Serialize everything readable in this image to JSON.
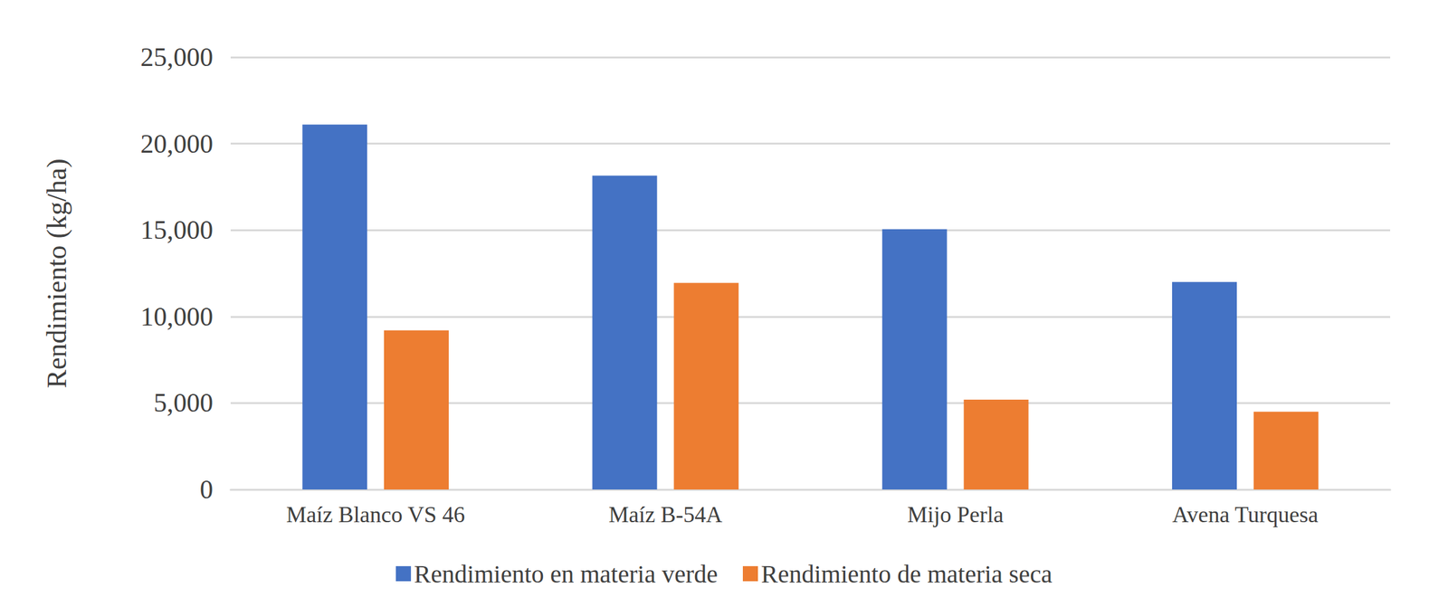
{
  "chart_data": {
    "type": "bar",
    "y_label": "Rendimiento (kg/ha)",
    "categories": [
      "Maíz Blanco VS 46",
      "Maíz B-54A",
      "Mijo Perla",
      "Avena Turquesa"
    ],
    "series": [
      {
        "name": "Rendimiento en materia verde",
        "color": "#4472c4",
        "values": [
          21100,
          18150,
          15050,
          12000
        ]
      },
      {
        "name": "Rendimiento de materia seca",
        "color": "#ed7d31",
        "values": [
          9200,
          11950,
          5200,
          4500
        ]
      }
    ],
    "ylim": [
      0,
      25000
    ],
    "yticks": [
      0,
      {
        "value": 5000,
        "label": "5,000"
      },
      {
        "value": 10000,
        "label": "10,000"
      },
      {
        "value": 15000,
        "label": "15,000"
      },
      {
        "value": 20000,
        "label": "20,000"
      },
      {
        "value": 25000,
        "label": "25,000"
      }
    ],
    "grid": true,
    "legend": "bottom"
  }
}
